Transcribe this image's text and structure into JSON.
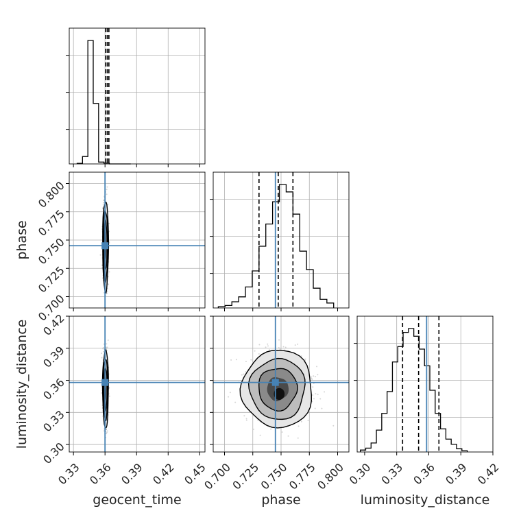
{
  "chart_data": {
    "type": "corner",
    "parameters": [
      "geocent_time",
      "phase",
      "luminosity_distance"
    ],
    "axis_labels": {
      "x": [
        "geocent_time",
        "phase",
        "luminosity_distance"
      ],
      "y": [
        "",
        "phase",
        "luminosity_distance"
      ]
    },
    "grid": true,
    "colors": {
      "histogram": "#000000",
      "truth": "#4682b4",
      "grid": "#b0b0b0",
      "scatter": "#888888"
    },
    "truths": {
      "geocent_time": 0.36,
      "phase": 0.745,
      "luminosity_distance": 0.358
    },
    "ranges": {
      "geocent_time": [
        0.326,
        0.455
      ],
      "phase": [
        0.69,
        0.81
      ],
      "luminosity_distance": [
        0.293,
        0.42
      ]
    },
    "ticks": {
      "geocent_time": {
        "values": [
          0.33,
          0.36,
          0.39,
          0.42,
          0.45
        ],
        "labels": [
          "0.33",
          "0.36",
          "0.39",
          "0.42",
          "0.45"
        ]
      },
      "phase": {
        "values": [
          0.7,
          0.725,
          0.75,
          0.775,
          0.8
        ],
        "labels": [
          "0.700",
          "0.725",
          "0.750",
          "0.775",
          "0.800"
        ]
      },
      "luminosity_distance": {
        "values": [
          0.3,
          0.33,
          0.36,
          0.39,
          0.42
        ],
        "labels": [
          "0.30",
          "0.33",
          "0.36",
          "0.39",
          "0.42"
        ]
      }
    },
    "marginals": [
      {
        "parameter": "geocent_time",
        "bin_edges": [
          0.3335,
          0.3386,
          0.3437,
          0.3488,
          0.3539,
          0.359,
          0.3641,
          0.3692,
          0.3743,
          0.3794,
          0.3845
        ],
        "counts": [
          0.5,
          6,
          100,
          49,
          1.5,
          0.7,
          0,
          0,
          0,
          0
        ],
        "quantiles": [
          0.3607,
          0.3622,
          0.3637
        ]
      },
      {
        "parameter": "phase",
        "bin_edges": [
          0.6945,
          0.7005,
          0.7065,
          0.7125,
          0.7185,
          0.7245,
          0.7305,
          0.7365,
          0.7425,
          0.7485,
          0.7545,
          0.7605,
          0.7665,
          0.7725,
          0.7785,
          0.7845,
          0.7905,
          0.7965
        ],
        "counts": [
          1,
          2,
          5,
          9,
          17,
          30,
          50,
          68,
          86,
          100,
          94,
          76,
          46,
          31,
          16,
          7,
          4
        ],
        "quantiles": [
          0.7305,
          0.7475,
          0.7605
        ]
      },
      {
        "parameter": "luminosity_distance",
        "bin_edges": [
          0.296,
          0.301,
          0.306,
          0.311,
          0.316,
          0.321,
          0.326,
          0.331,
          0.336,
          0.341,
          0.346,
          0.351,
          0.356,
          0.361,
          0.366,
          0.371,
          0.376,
          0.381,
          0.386,
          0.391,
          0.396
        ],
        "counts": [
          1.5,
          3,
          7,
          17,
          30,
          47,
          70,
          82,
          93,
          96,
          90,
          80,
          67,
          48,
          30,
          18,
          10,
          6,
          2.5,
          1
        ],
        "quantiles": [
          0.3355,
          0.3505,
          0.3695
        ]
      }
    ],
    "joint_2d": [
      {
        "x": "geocent_time",
        "y": "phase",
        "center": [
          0.3605,
          0.745
        ],
        "sigma": [
          0.0012,
          0.0173
        ],
        "contour_levels_sigma": [
          0.7,
          1.25,
          1.8,
          2.3
        ]
      },
      {
        "x": "geocent_time",
        "y": "luminosity_distance",
        "center": [
          0.3605,
          0.352
        ],
        "sigma": [
          0.0012,
          0.0158
        ],
        "contour_levels_sigma": [
          0.7,
          1.25,
          1.8,
          2.3
        ]
      },
      {
        "x": "phase",
        "y": "luminosity_distance",
        "center": [
          0.747,
          0.352
        ],
        "sigma": [
          0.0136,
          0.0158
        ],
        "contour_levels_sigma": [
          0.7,
          1.25,
          1.8,
          2.3
        ]
      }
    ]
  }
}
